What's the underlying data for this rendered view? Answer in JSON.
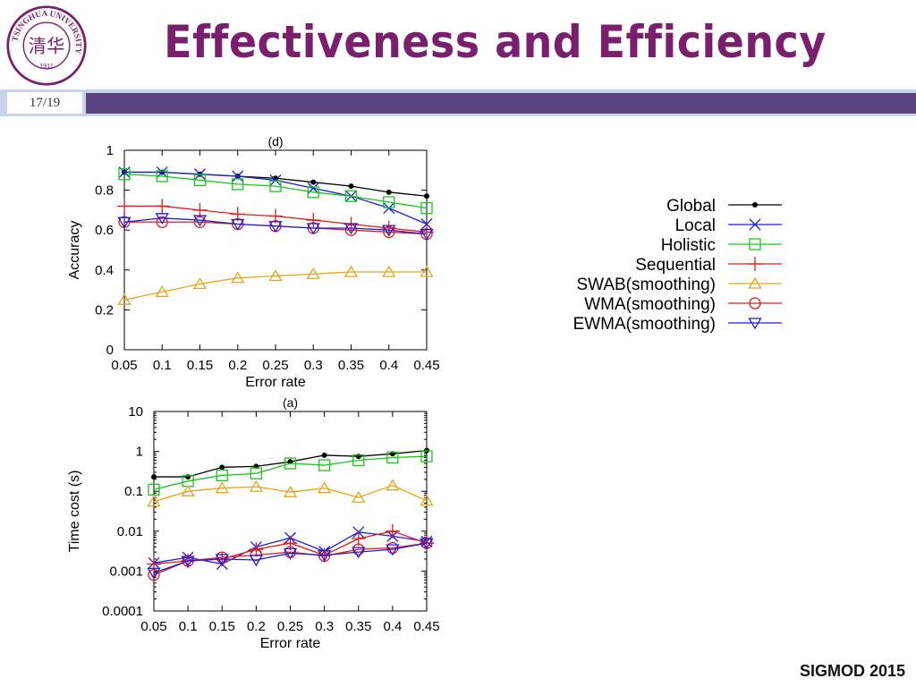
{
  "slide": {
    "title": "Effectiveness and Efficiency",
    "page": "17/19",
    "conference": "SIGMOD 2015",
    "logo_text": "TSINGHUA UNIVERSITY 1911"
  },
  "styles": {
    "Global": {
      "color": "#000000",
      "marker": "dot"
    },
    "Local": {
      "color": "#1f1fd6",
      "marker": "x"
    },
    "Holistic": {
      "color": "#16c916",
      "marker": "square"
    },
    "Sequential": {
      "color": "#e01b1b",
      "marker": "plus"
    },
    "SWAB(smoothing)": {
      "color": "#e8a317",
      "marker": "triangle"
    },
    "WMA(smoothing)": {
      "color": "#e01b1b",
      "marker": "circle"
    },
    "EWMA(smoothing)": {
      "color": "#1f1fd6",
      "marker": "triangle-down"
    }
  },
  "chart_data": [
    {
      "id": "d",
      "type": "line",
      "title": "(d)",
      "xlabel": "Error rate",
      "ylabel": "Accuracy",
      "xlim": [
        0.05,
        0.45
      ],
      "ylim": [
        0,
        1
      ],
      "scale": "linear",
      "x": [
        0.05,
        0.1,
        0.15,
        0.2,
        0.25,
        0.3,
        0.35,
        0.4,
        0.45
      ],
      "x_ticks": [
        "0.05",
        "0.1",
        "0.15",
        "0.2",
        "0.25",
        "0.3",
        "0.35",
        "0.4",
        "0.45"
      ],
      "y_ticks": [
        {
          "v": 0,
          "label": "0"
        },
        {
          "v": 0.2,
          "label": "0.2"
        },
        {
          "v": 0.4,
          "label": "0.4"
        },
        {
          "v": 0.6,
          "label": "0.6"
        },
        {
          "v": 0.8,
          "label": "0.8"
        },
        {
          "v": 1,
          "label": "1"
        }
      ],
      "series": [
        {
          "name": "Global",
          "values": [
            0.89,
            0.89,
            0.88,
            0.87,
            0.86,
            0.84,
            0.82,
            0.79,
            0.77
          ]
        },
        {
          "name": "Local",
          "values": [
            0.89,
            0.89,
            0.88,
            0.87,
            0.85,
            0.81,
            0.77,
            0.71,
            0.63
          ]
        },
        {
          "name": "Holistic",
          "values": [
            0.88,
            0.87,
            0.85,
            0.83,
            0.82,
            0.79,
            0.77,
            0.74,
            0.71
          ]
        },
        {
          "name": "Sequential",
          "values": [
            0.72,
            0.72,
            0.7,
            0.68,
            0.67,
            0.65,
            0.63,
            0.61,
            0.59
          ]
        },
        {
          "name": "SWAB(smoothing)",
          "values": [
            0.25,
            0.29,
            0.33,
            0.36,
            0.37,
            0.38,
            0.39,
            0.39,
            0.39
          ]
        },
        {
          "name": "WMA(smoothing)",
          "values": [
            0.64,
            0.64,
            0.64,
            0.63,
            0.62,
            0.61,
            0.6,
            0.59,
            0.58
          ]
        },
        {
          "name": "EWMA(smoothing)",
          "values": [
            0.64,
            0.66,
            0.65,
            0.63,
            0.62,
            0.61,
            0.61,
            0.6,
            0.58
          ]
        }
      ]
    },
    {
      "id": "a",
      "type": "line",
      "title": "(a)",
      "xlabel": "Error rate",
      "ylabel": "Time cost (s)",
      "xlim": [
        0.05,
        0.45
      ],
      "ylim": [
        0.0001,
        10
      ],
      "scale": "log",
      "x": [
        0.05,
        0.1,
        0.15,
        0.2,
        0.25,
        0.3,
        0.35,
        0.4,
        0.45
      ],
      "x_ticks": [
        "0.05",
        "0.1",
        "0.15",
        "0.2",
        "0.25",
        "0.3",
        "0.35",
        "0.4",
        "0.45"
      ],
      "y_ticks": [
        {
          "v": 0.0001,
          "label": "0.0001"
        },
        {
          "v": 0.001,
          "label": "0.001"
        },
        {
          "v": 0.01,
          "label": "0.01"
        },
        {
          "v": 0.1,
          "label": "0.1"
        },
        {
          "v": 1,
          "label": "1"
        },
        {
          "v": 10,
          "label": "10"
        }
      ],
      "series": [
        {
          "name": "Global",
          "values": [
            0.23,
            0.23,
            0.4,
            0.42,
            0.55,
            0.8,
            0.75,
            0.87,
            1.05
          ]
        },
        {
          "name": "Local",
          "values": [
            0.0016,
            0.0022,
            0.0015,
            0.004,
            0.0068,
            0.0031,
            0.0095,
            0.0075,
            0.0055
          ]
        },
        {
          "name": "Holistic",
          "values": [
            0.11,
            0.18,
            0.25,
            0.28,
            0.5,
            0.45,
            0.6,
            0.7,
            0.75
          ]
        },
        {
          "name": "Sequential",
          "values": [
            0.0015,
            0.0018,
            0.002,
            0.0035,
            0.005,
            0.0025,
            0.0065,
            0.01,
            0.005
          ]
        },
        {
          "name": "SWAB(smoothing)",
          "values": [
            0.055,
            0.1,
            0.12,
            0.13,
            0.095,
            0.12,
            0.07,
            0.14,
            0.058
          ]
        },
        {
          "name": "WMA(smoothing)",
          "values": [
            0.0008,
            0.0018,
            0.0022,
            0.0025,
            0.003,
            0.0024,
            0.0035,
            0.0038,
            0.005
          ]
        },
        {
          "name": "EWMA(smoothing)",
          "values": [
            0.0009,
            0.0018,
            0.002,
            0.0019,
            0.0028,
            0.0025,
            0.003,
            0.0035,
            0.005
          ]
        }
      ]
    }
  ],
  "legend": {
    "entries": [
      "Global",
      "Local",
      "Holistic",
      "Sequential",
      "SWAB(smoothing)",
      "WMA(smoothing)",
      "EWMA(smoothing)"
    ]
  }
}
